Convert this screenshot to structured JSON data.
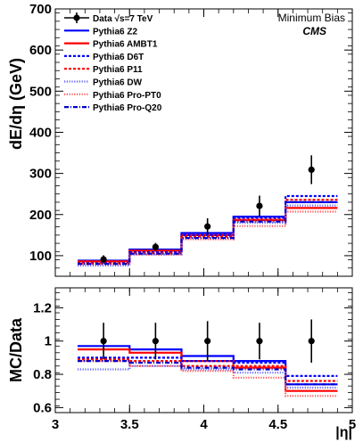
{
  "header": {
    "label": "Minimum Bias",
    "experiment": "CMS"
  },
  "chart_data": [
    {
      "type": "line",
      "panel": "main",
      "ylabel": "dE/dη (GeV)",
      "xlabel": "|η|",
      "xlim": [
        3.0,
        5.0
      ],
      "ylim": [
        50,
        700
      ],
      "y_ticks": [
        100,
        200,
        300,
        400,
        500,
        600,
        700
      ],
      "x_bins": [
        3.15,
        3.5,
        3.85,
        4.2,
        4.55,
        4.9
      ],
      "data": {
        "name": "Data √s=7 TeV",
        "x": [
          3.325,
          3.675,
          4.025,
          4.375,
          4.725
        ],
        "y": [
          91,
          121,
          171,
          221,
          309
        ],
        "y_err_low": [
          10,
          10,
          20,
          25,
          35
        ],
        "y_err_high": [
          10,
          10,
          20,
          25,
          35
        ]
      },
      "series": [
        {
          "name": "Pythia6 Z2",
          "color": "#0000ff",
          "style": "solid",
          "values": [
            88,
            115,
            155,
            195,
            230
          ]
        },
        {
          "name": "Pythia6 AMBT1",
          "color": "#ff0000",
          "style": "solid",
          "values": [
            86,
            112,
            150,
            186,
            216
          ]
        },
        {
          "name": "Pythia6 D6T",
          "color": "#0000ff",
          "style": "dashed",
          "values": [
            82,
            108,
            150,
            192,
            245
          ]
        },
        {
          "name": "Pythia6 P11",
          "color": "#ff0000",
          "style": "dashed",
          "values": [
            81,
            106,
            146,
            188,
            236
          ]
        },
        {
          "name": "Pythia6 DW",
          "color": "#6666ff",
          "style": "dotted",
          "values": [
            76,
            103,
            142,
            180,
            222
          ]
        },
        {
          "name": "Pythia6 Pro-PT0",
          "color": "#ff5555",
          "style": "dotted",
          "values": [
            80,
            103,
            140,
            172,
            207
          ]
        },
        {
          "name": "Pythia6 Pro-Q20",
          "color": "#0000cc",
          "style": "dashdot",
          "values": [
            80,
            105,
            143,
            183,
            230
          ]
        }
      ]
    },
    {
      "type": "line",
      "panel": "ratio",
      "ylabel": "MC/Data",
      "xlabel": "|η|",
      "xlim": [
        3.0,
        5.0
      ],
      "ylim": [
        0.57,
        1.32
      ],
      "y_ticks": [
        0.6,
        0.8,
        1.0,
        1.2
      ],
      "y_tick_labels": [
        "0.6",
        "0.8",
        "1",
        "1.2"
      ],
      "x_ticks": [
        3.0,
        3.5,
        4.0,
        4.5,
        5.0
      ],
      "x_tick_labels": [
        "3",
        "3.5",
        "4",
        "4.5",
        "5"
      ],
      "x_bins": [
        3.15,
        3.5,
        3.85,
        4.2,
        4.55,
        4.9
      ],
      "data": {
        "name": "Data √s=7 TeV",
        "x": [
          3.325,
          3.675,
          4.025,
          4.375,
          4.725
        ],
        "y": [
          1.0,
          1.0,
          1.0,
          1.0,
          1.0
        ],
        "y_err": [
          0.11,
          0.11,
          0.12,
          0.11,
          0.13
        ]
      },
      "series": [
        {
          "name": "Pythia6 Z2",
          "color": "#0000ff",
          "style": "solid",
          "values": [
            0.97,
            0.95,
            0.91,
            0.88,
            0.74
          ]
        },
        {
          "name": "Pythia6 AMBT1",
          "color": "#ff0000",
          "style": "solid",
          "values": [
            0.95,
            0.93,
            0.88,
            0.84,
            0.7
          ]
        },
        {
          "name": "Pythia6 D6T",
          "color": "#0000ff",
          "style": "dashed",
          "values": [
            0.9,
            0.9,
            0.88,
            0.87,
            0.79
          ]
        },
        {
          "name": "Pythia6 P11",
          "color": "#ff0000",
          "style": "dashed",
          "values": [
            0.89,
            0.88,
            0.85,
            0.85,
            0.76
          ]
        },
        {
          "name": "Pythia6 DW",
          "color": "#6666ff",
          "style": "dotted",
          "values": [
            0.83,
            0.85,
            0.83,
            0.81,
            0.72
          ]
        },
        {
          "name": "Pythia6 Pro-PT0",
          "color": "#ff5555",
          "style": "dotted",
          "values": [
            0.88,
            0.85,
            0.82,
            0.78,
            0.67
          ]
        },
        {
          "name": "Pythia6 Pro-Q20",
          "color": "#0000cc",
          "style": "dashdot",
          "values": [
            0.88,
            0.87,
            0.84,
            0.83,
            0.74
          ]
        }
      ]
    }
  ]
}
